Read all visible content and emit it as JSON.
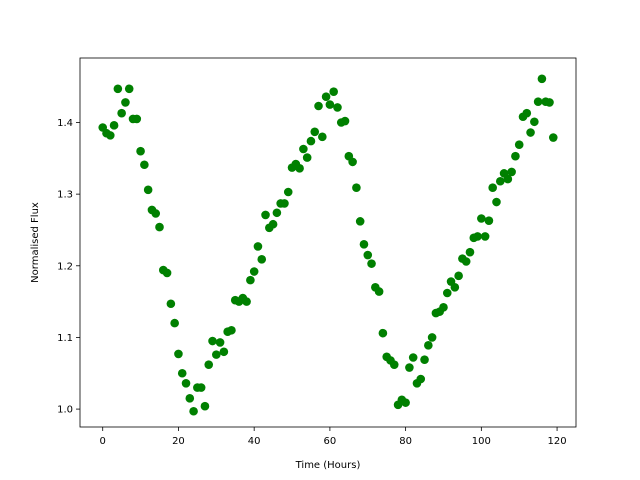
{
  "chart_data": {
    "type": "scatter",
    "xlabel": "Time (Hours)",
    "ylabel": "Normalised Flux",
    "xlim": [
      -6,
      125
    ],
    "ylim": [
      0.975,
      1.49
    ],
    "xticks": [
      0,
      20,
      40,
      60,
      80,
      100,
      120
    ],
    "yticks": [
      1.0,
      1.1,
      1.2,
      1.3,
      1.4
    ],
    "grid": false,
    "marker_color": "#008000",
    "series": [
      {
        "x": [
          0,
          1,
          2,
          3,
          4,
          5,
          6,
          7,
          8,
          9,
          10,
          11,
          12,
          13,
          14,
          15,
          16,
          17,
          18,
          19,
          20,
          21,
          22,
          23,
          24,
          25,
          26,
          27,
          28,
          29,
          30,
          31,
          32,
          33,
          34,
          35,
          36,
          37,
          38,
          39,
          40,
          41,
          42,
          43,
          44,
          45,
          46,
          47,
          48,
          49,
          50,
          51,
          52,
          53,
          54,
          55,
          56,
          57,
          58,
          59,
          60,
          61,
          62,
          63,
          64,
          65,
          66,
          67,
          68,
          69,
          70,
          71,
          72,
          73,
          74,
          75,
          76,
          77,
          78,
          79,
          80,
          81,
          82,
          83,
          84,
          85,
          86,
          87,
          88,
          89,
          90,
          91,
          92,
          93,
          94,
          95,
          96,
          97,
          98,
          99,
          100,
          101,
          102,
          103,
          104,
          105,
          106,
          107,
          108,
          109,
          110,
          111,
          112,
          113,
          114,
          115,
          116,
          117,
          118,
          119
        ],
        "y": [
          1.393,
          1.385,
          1.382,
          1.396,
          1.447,
          1.413,
          1.428,
          1.447,
          1.405,
          1.405,
          1.36,
          1.341,
          1.306,
          1.278,
          1.273,
          1.254,
          1.194,
          1.19,
          1.147,
          1.12,
          1.077,
          1.05,
          1.036,
          1.015,
          0.997,
          1.03,
          1.03,
          1.004,
          1.062,
          1.095,
          1.076,
          1.093,
          1.08,
          1.108,
          1.11,
          1.152,
          1.15,
          1.155,
          1.15,
          1.18,
          1.192,
          1.227,
          1.209,
          1.271,
          1.253,
          1.258,
          1.274,
          1.287,
          1.287,
          1.303,
          1.337,
          1.342,
          1.336,
          1.363,
          1.351,
          1.374,
          1.387,
          1.423,
          1.38,
          1.436,
          1.425,
          1.443,
          1.421,
          1.4,
          1.402,
          1.353,
          1.345,
          1.309,
          1.262,
          1.23,
          1.215,
          1.203,
          1.17,
          1.164,
          1.106,
          1.073,
          1.068,
          1.062,
          1.006,
          1.013,
          1.009,
          1.058,
          1.072,
          1.036,
          1.042,
          1.069,
          1.089,
          1.1,
          1.134,
          1.136,
          1.142,
          1.162,
          1.178,
          1.17,
          1.186,
          1.21,
          1.206,
          1.219,
          1.239,
          1.241,
          1.266,
          1.241,
          1.263,
          1.309,
          1.289,
          1.318,
          1.329,
          1.321,
          1.331,
          1.353,
          1.369,
          1.408,
          1.413,
          1.386,
          1.401,
          1.429,
          1.461,
          1.429,
          1.428,
          1.379
        ]
      }
    ]
  }
}
